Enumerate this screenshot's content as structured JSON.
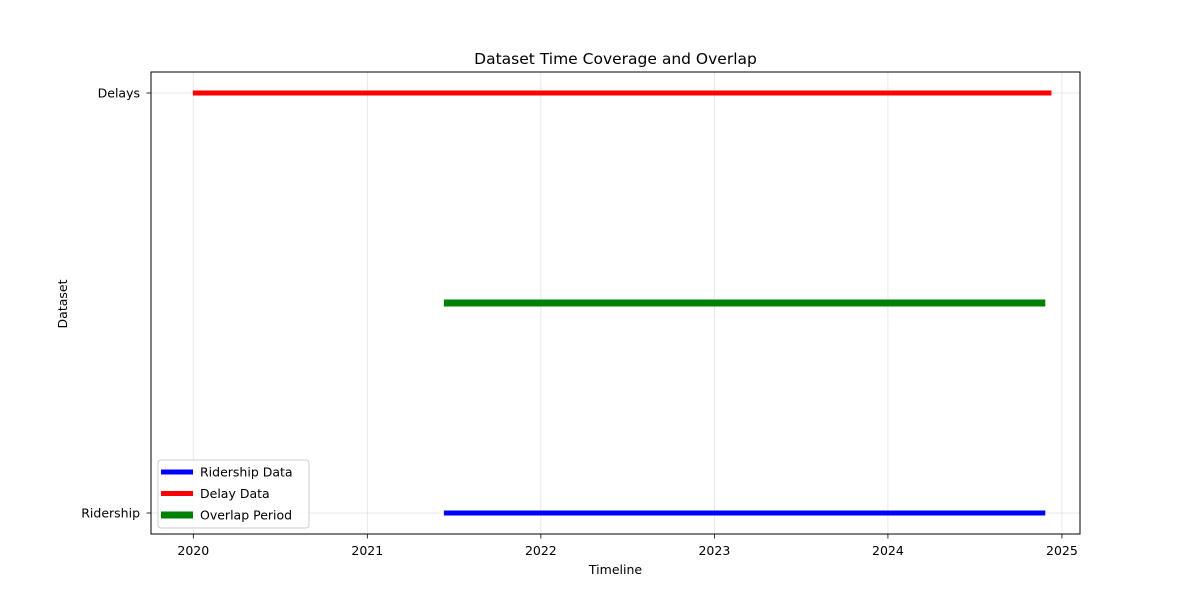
{
  "chart_data": {
    "type": "line",
    "title": "Dataset Time Coverage and Overlap",
    "xlabel": "Timeline",
    "ylabel": "Dataset",
    "x_axis_kind": "date",
    "xlim": [
      "2019-10-04",
      "2025-02-08"
    ],
    "ylim": [
      -0.05,
      1.05
    ],
    "x_ticks": [
      {
        "value": "2020-01-01",
        "label": "2020"
      },
      {
        "value": "2021-01-01",
        "label": "2021"
      },
      {
        "value": "2022-01-01",
        "label": "2022"
      },
      {
        "value": "2023-01-01",
        "label": "2023"
      },
      {
        "value": "2024-01-01",
        "label": "2024"
      },
      {
        "value": "2025-01-01",
        "label": "2025"
      }
    ],
    "y_ticks": [
      {
        "value": 0,
        "label": "Ridership"
      },
      {
        "value": 1,
        "label": "Delays"
      }
    ],
    "grid": true,
    "legend_position": "lower-left",
    "series": [
      {
        "name": "Ridership Data",
        "color": "#0000ff",
        "start": "2021-06-11",
        "end": "2024-11-27",
        "y": 0
      },
      {
        "name": "Delay Data",
        "color": "#ff0000",
        "start": "2019-12-31",
        "end": "2024-12-10",
        "y": 1
      },
      {
        "name": "Overlap Period",
        "color": "#008000",
        "start": "2021-06-11",
        "end": "2024-11-27",
        "y": 0.5
      }
    ]
  }
}
